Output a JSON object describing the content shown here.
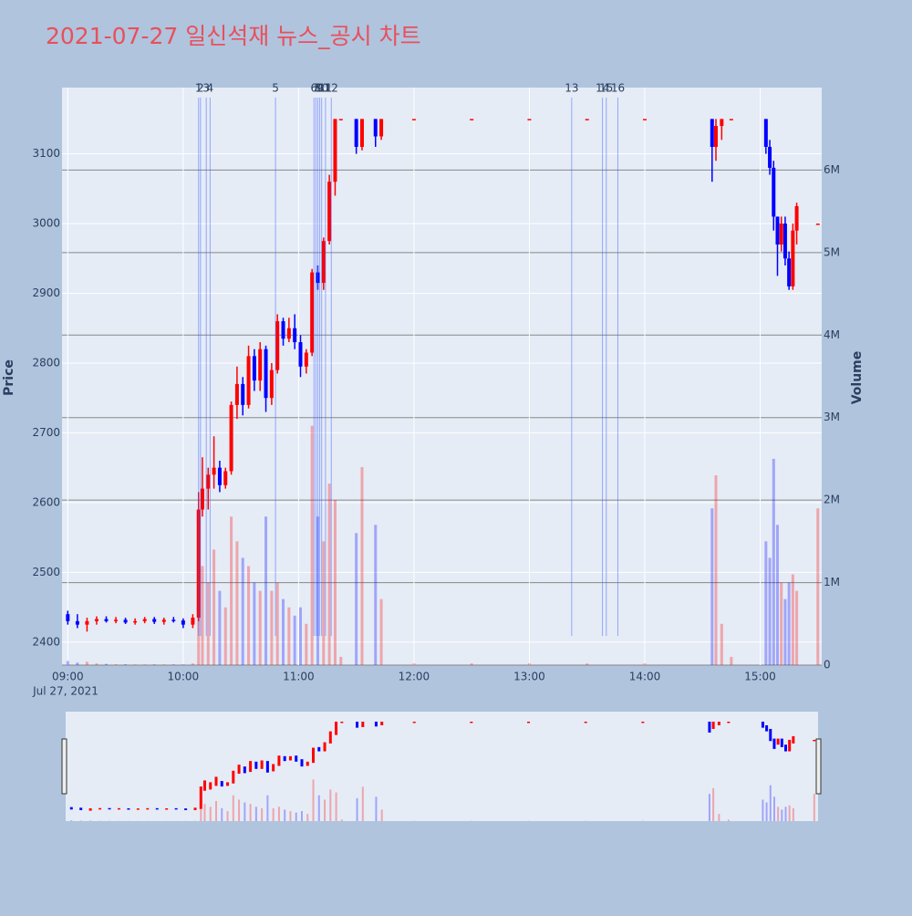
{
  "chart_data": {
    "type": "candlestick",
    "title": "2021-07-27 일신석재 뉴스_공시 차트",
    "y_label": "Price",
    "y2_label": "Volume",
    "xlim": [
      "08:57",
      "15:32"
    ],
    "xticks": [
      "09:00",
      "10:00",
      "11:00",
      "12:00",
      "13:00",
      "14:00",
      "15:00"
    ],
    "xdate": "Jul 27, 2021",
    "ylim": [
      2367,
      3195
    ],
    "yticks": [
      2400,
      2500,
      2600,
      2700,
      2800,
      2900,
      3000,
      3100
    ],
    "y2lim": [
      0,
      7000000
    ],
    "y2ticks": [
      {
        "value": 0,
        "label": "0"
      },
      {
        "value": 1000000,
        "label": "1M"
      },
      {
        "value": 2000000,
        "label": "2M"
      },
      {
        "value": 3000000,
        "label": "3M"
      },
      {
        "value": 4000000,
        "label": "4M"
      },
      {
        "value": 5000000,
        "label": "5M"
      },
      {
        "value": 6000000,
        "label": "6M"
      }
    ],
    "up_color": "#ff0000",
    "down_color": "#0000ff",
    "x": [
      "09:00",
      "09:05",
      "09:10",
      "09:15",
      "09:20",
      "09:25",
      "09:30",
      "09:35",
      "09:40",
      "09:45",
      "09:50",
      "09:55",
      "10:00",
      "10:05",
      "10:08",
      "10:10",
      "10:13",
      "10:16",
      "10:19",
      "10:22",
      "10:25",
      "10:28",
      "10:31",
      "10:34",
      "10:37",
      "10:40",
      "10:43",
      "10:46",
      "10:49",
      "10:52",
      "10:55",
      "10:58",
      "11:01",
      "11:04",
      "11:07",
      "11:10",
      "11:13",
      "11:16",
      "11:19",
      "11:22",
      "11:30",
      "11:33",
      "11:40",
      "11:43",
      "12:00",
      "12:30",
      "13:00",
      "13:30",
      "14:00",
      "14:35",
      "14:37",
      "14:40",
      "14:45",
      "15:03",
      "15:05",
      "15:07",
      "15:09",
      "15:11",
      "15:13",
      "15:15",
      "15:17",
      "15:19",
      "15:30"
    ],
    "open": [
      2440,
      2430,
      2425,
      2430,
      2433,
      2430,
      2432,
      2428,
      2430,
      2433,
      2429,
      2432,
      2431,
      2425,
      2435,
      2590,
      2620,
      2640,
      2650,
      2625,
      2645,
      2740,
      2770,
      2740,
      2810,
      2775,
      2820,
      2750,
      2790,
      2860,
      2835,
      2850,
      2830,
      2795,
      2815,
      2930,
      2915,
      2975,
      3060,
      3150,
      3150,
      3110,
      3150,
      3125,
      3150,
      3150,
      3150,
      3150,
      3150,
      3150,
      3110,
      3140,
      3150,
      3150,
      3110,
      3080,
      3010,
      2970,
      3000,
      2950,
      2910,
      2990,
      3000
    ],
    "high": [
      2445,
      2440,
      2435,
      2437,
      2437,
      2436,
      2435,
      2434,
      2436,
      2436,
      2435,
      2436,
      2434,
      2440,
      2615,
      2665,
      2650,
      2695,
      2660,
      2650,
      2745,
      2795,
      2780,
      2825,
      2820,
      2830,
      2825,
      2800,
      2870,
      2865,
      2865,
      2870,
      2840,
      2820,
      2935,
      2940,
      2980,
      3070,
      3150,
      3150,
      3150,
      3150,
      3150,
      3150,
      3150,
      3150,
      3150,
      3150,
      3150,
      3150,
      3150,
      3150,
      3150,
      3150,
      3120,
      3090,
      3010,
      3010,
      3010,
      2960,
      3000,
      3030,
      3000
    ],
    "low": [
      2425,
      2420,
      2415,
      2425,
      2428,
      2427,
      2426,
      2425,
      2427,
      2426,
      2425,
      2428,
      2420,
      2420,
      2430,
      2580,
      2590,
      2620,
      2615,
      2620,
      2640,
      2720,
      2725,
      2735,
      2760,
      2760,
      2730,
      2740,
      2785,
      2825,
      2830,
      2820,
      2780,
      2785,
      2810,
      2905,
      2905,
      2970,
      3040,
      3150,
      3100,
      3105,
      3110,
      3120,
      3150,
      3150,
      3150,
      3150,
      3150,
      3060,
      3090,
      3120,
      3150,
      3100,
      3070,
      2990,
      2925,
      2960,
      2940,
      2905,
      2905,
      2970,
      3000
    ],
    "close": [
      2430,
      2425,
      2430,
      2433,
      2430,
      2432,
      2428,
      2430,
      2433,
      2429,
      2432,
      2431,
      2425,
      2435,
      2590,
      2620,
      2640,
      2650,
      2625,
      2645,
      2740,
      2770,
      2740,
      2810,
      2775,
      2820,
      2750,
      2790,
      2860,
      2835,
      2850,
      2830,
      2795,
      2815,
      2930,
      2915,
      2975,
      3060,
      3150,
      3150,
      3110,
      3150,
      3125,
      3150,
      3150,
      3150,
      3150,
      3150,
      3150,
      3110,
      3140,
      3150,
      3150,
      3110,
      3080,
      3010,
      2970,
      3000,
      2950,
      2910,
      2990,
      3025,
      3000
    ],
    "volume": [
      50000,
      30000,
      40000,
      20000,
      15000,
      10000,
      10000,
      8000,
      8000,
      8000,
      8000,
      8000,
      10000,
      20000,
      1500000,
      1200000,
      1000000,
      1400000,
      900000,
      700000,
      1800000,
      1500000,
      1300000,
      1200000,
      1000000,
      900000,
      1800000,
      900000,
      1000000,
      800000,
      700000,
      600000,
      700000,
      500000,
      2900000,
      1800000,
      1500000,
      2200000,
      2000000,
      100000,
      1600000,
      2400000,
      1700000,
      800000,
      20000,
      20000,
      20000,
      20000,
      20000,
      1900000,
      2300000,
      500000,
      100000,
      1500000,
      1300000,
      2500000,
      1700000,
      1000000,
      800000,
      1000000,
      1100000,
      900000,
      1900000
    ],
    "news": [
      {
        "label": "1",
        "x": "10:08"
      },
      {
        "label": "2",
        "x": "10:09"
      },
      {
        "label": "3",
        "x": "10:12"
      },
      {
        "label": "4",
        "x": "10:14"
      },
      {
        "label": "5",
        "x": "10:48"
      },
      {
        "label": "6",
        "x": "11:08"
      },
      {
        "label": "7",
        "x": "11:09"
      },
      {
        "label": "8",
        "x": "11:10"
      },
      {
        "label": "9",
        "x": "11:11"
      },
      {
        "label": "10",
        "x": "11:12"
      },
      {
        "label": "11",
        "x": "11:14"
      },
      {
        "label": "12",
        "x": "11:17"
      },
      {
        "label": "13",
        "x": "13:22"
      },
      {
        "label": "14",
        "x": "13:38"
      },
      {
        "label": "15",
        "x": "13:40"
      },
      {
        "label": "16",
        "x": "13:46"
      }
    ]
  }
}
